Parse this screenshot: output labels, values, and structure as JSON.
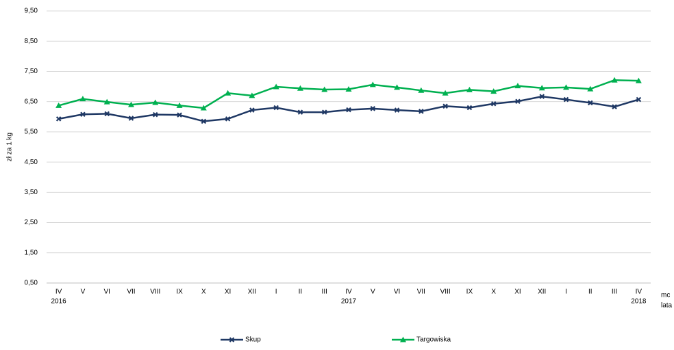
{
  "chart_data": {
    "type": "line",
    "y_label": "zł za 1 kg",
    "x_label": "mc",
    "x_label2": "lata",
    "categories": [
      "IV",
      "V",
      "VI",
      "VII",
      "VIII",
      "IX",
      "X",
      "XI",
      "XII",
      "I",
      "II",
      "III",
      "IV",
      "V",
      "VI",
      "VII",
      "VIII",
      "IX",
      "X",
      "XI",
      "XII",
      "I",
      "II",
      "III",
      "IV"
    ],
    "years": [
      "2016",
      null,
      null,
      null,
      null,
      null,
      null,
      null,
      null,
      null,
      null,
      null,
      "2017",
      null,
      null,
      null,
      null,
      null,
      null,
      null,
      null,
      null,
      null,
      null,
      "2018"
    ],
    "series": [
      {
        "name": "Skup",
        "color": "#1f3864",
        "marker": "x",
        "values": [
          5.93,
          6.08,
          6.1,
          5.95,
          6.07,
          6.06,
          5.85,
          5.93,
          6.22,
          6.3,
          6.15,
          6.15,
          6.23,
          6.27,
          6.22,
          6.18,
          6.35,
          6.3,
          6.43,
          6.51,
          6.67,
          6.57,
          6.46,
          6.33,
          6.57
        ]
      },
      {
        "name": "Targowiska",
        "color": "#00b050",
        "marker": "triangle",
        "values": [
          6.37,
          6.59,
          6.49,
          6.4,
          6.47,
          6.37,
          6.29,
          6.78,
          6.7,
          6.99,
          6.94,
          6.9,
          6.91,
          7.06,
          6.97,
          6.87,
          6.78,
          6.89,
          6.84,
          7.02,
          6.95,
          6.97,
          6.92,
          7.21,
          7.19
        ]
      }
    ],
    "ylim": [
      0.5,
      9.5
    ],
    "yticks": [
      {
        "value": 0.5,
        "label": "0,50"
      },
      {
        "value": 1.5,
        "label": "1,50"
      },
      {
        "value": 2.5,
        "label": "2,50"
      },
      {
        "value": 3.5,
        "label": "3,50"
      },
      {
        "value": 4.5,
        "label": "4,50"
      },
      {
        "value": 5.5,
        "label": "5,50"
      },
      {
        "value": 6.5,
        "label": "6,50"
      },
      {
        "value": 7.5,
        "label": "7,50"
      },
      {
        "value": 8.5,
        "label": "8,50"
      },
      {
        "value": 9.5,
        "label": "9,50"
      }
    ],
    "grid": true,
    "legend": "bottom"
  }
}
